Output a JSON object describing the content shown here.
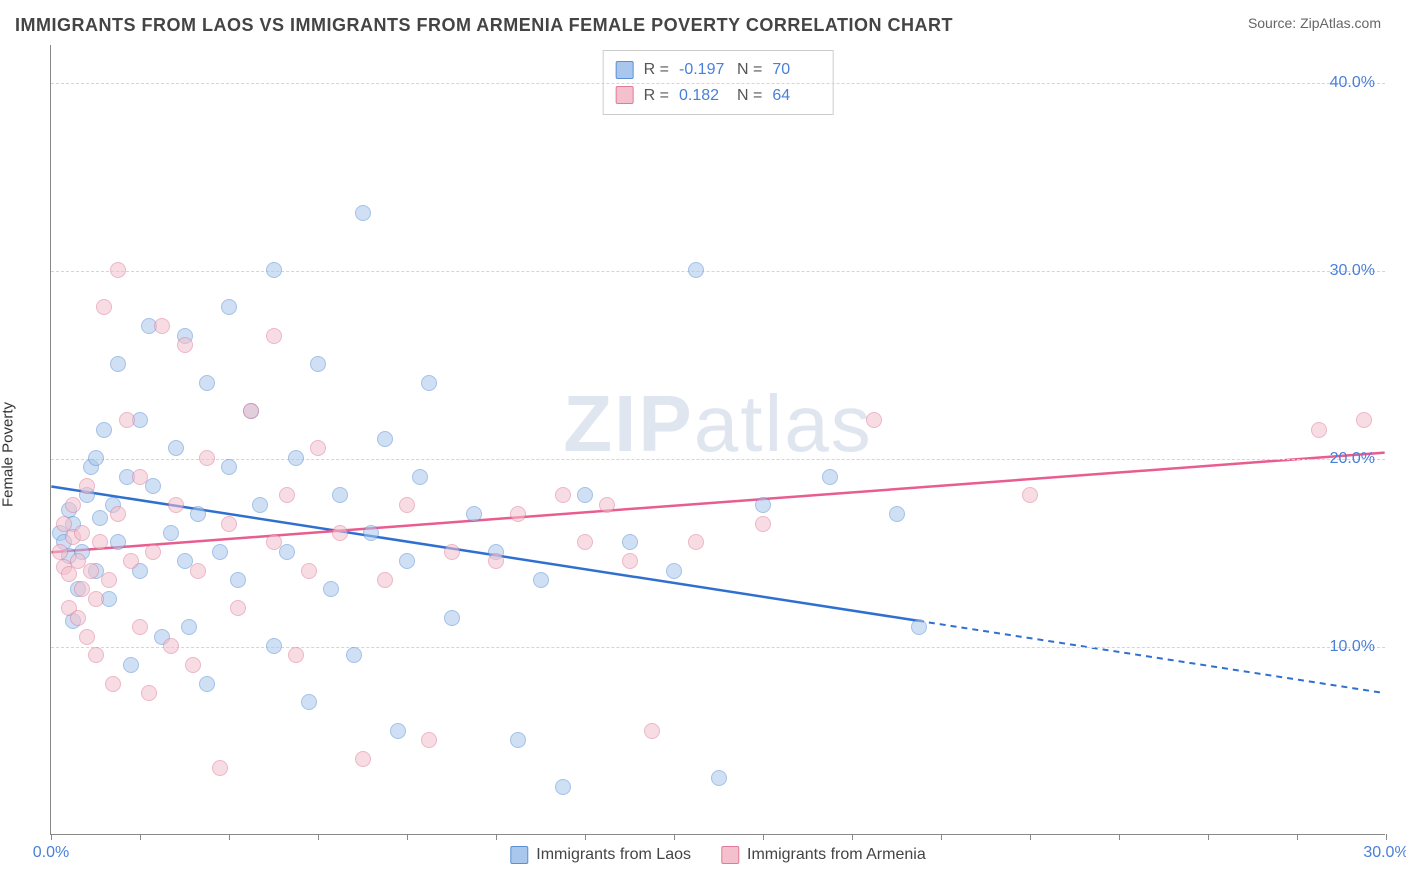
{
  "title": "IMMIGRANTS FROM LAOS VS IMMIGRANTS FROM ARMENIA FEMALE POVERTY CORRELATION CHART",
  "source_label": "Source: ",
  "source_value": "ZipAtlas.com",
  "ylabel": "Female Poverty",
  "watermark": {
    "part1": "ZIP",
    "part2": "atlas"
  },
  "chart": {
    "type": "scatter",
    "xlim": [
      0,
      30
    ],
    "ylim": [
      0,
      42
    ],
    "x_ticks": [
      0,
      2,
      4,
      6,
      8,
      10,
      12,
      14,
      16,
      18,
      20,
      22,
      24,
      26,
      28,
      30
    ],
    "x_tick_labels": {
      "0": "0.0%",
      "30": "30.0%"
    },
    "y_gridlines": [
      10,
      20,
      30,
      40
    ],
    "y_tick_labels": {
      "10": "10.0%",
      "20": "20.0%",
      "30": "30.0%",
      "40": "40.0%"
    },
    "background_color": "#ffffff",
    "grid_color": "#d5d5d5",
    "axis_color": "#888888",
    "tick_label_color": "#4a7fd8",
    "marker_radius": 8,
    "marker_opacity": 0.55,
    "marker_border_width": 1.5,
    "series": [
      {
        "name": "Immigrants from Laos",
        "color_fill": "#a9c7ed",
        "color_stroke": "#5b8fd6",
        "R": "-0.197",
        "N": "70",
        "trend": {
          "y_at_x0": 18.5,
          "y_at_x30": 7.5,
          "solid_until_x": 19.5,
          "color": "#2f6fd0",
          "width": 2.5
        },
        "points": [
          [
            0.2,
            16.0
          ],
          [
            0.3,
            15.5
          ],
          [
            0.4,
            14.8
          ],
          [
            0.4,
            17.2
          ],
          [
            0.5,
            16.5
          ],
          [
            0.5,
            11.3
          ],
          [
            0.6,
            13.0
          ],
          [
            0.7,
            15.0
          ],
          [
            0.8,
            18.0
          ],
          [
            0.9,
            19.5
          ],
          [
            1.0,
            14.0
          ],
          [
            1.0,
            20.0
          ],
          [
            1.1,
            16.8
          ],
          [
            1.2,
            21.5
          ],
          [
            1.3,
            12.5
          ],
          [
            1.4,
            17.5
          ],
          [
            1.5,
            25.0
          ],
          [
            1.5,
            15.5
          ],
          [
            1.7,
            19.0
          ],
          [
            1.8,
            9.0
          ],
          [
            2.0,
            22.0
          ],
          [
            2.0,
            14.0
          ],
          [
            2.2,
            27.0
          ],
          [
            2.3,
            18.5
          ],
          [
            2.5,
            10.5
          ],
          [
            2.7,
            16.0
          ],
          [
            2.8,
            20.5
          ],
          [
            3.0,
            26.5
          ],
          [
            3.0,
            14.5
          ],
          [
            3.1,
            11.0
          ],
          [
            3.3,
            17.0
          ],
          [
            3.5,
            24.0
          ],
          [
            3.5,
            8.0
          ],
          [
            3.8,
            15.0
          ],
          [
            4.0,
            19.5
          ],
          [
            4.0,
            28.0
          ],
          [
            4.2,
            13.5
          ],
          [
            4.5,
            22.5
          ],
          [
            4.7,
            17.5
          ],
          [
            5.0,
            10.0
          ],
          [
            5.0,
            30.0
          ],
          [
            5.3,
            15.0
          ],
          [
            5.5,
            20.0
          ],
          [
            5.8,
            7.0
          ],
          [
            6.0,
            25.0
          ],
          [
            6.3,
            13.0
          ],
          [
            6.5,
            18.0
          ],
          [
            6.8,
            9.5
          ],
          [
            7.0,
            33.0
          ],
          [
            7.2,
            16.0
          ],
          [
            7.5,
            21.0
          ],
          [
            7.8,
            5.5
          ],
          [
            8.0,
            14.5
          ],
          [
            8.3,
            19.0
          ],
          [
            8.5,
            24.0
          ],
          [
            9.0,
            11.5
          ],
          [
            9.5,
            17.0
          ],
          [
            10.0,
            15.0
          ],
          [
            10.5,
            5.0
          ],
          [
            11.0,
            13.5
          ],
          [
            11.5,
            2.5
          ],
          [
            12.0,
            18.0
          ],
          [
            13.0,
            15.5
          ],
          [
            14.0,
            14.0
          ],
          [
            14.5,
            30.0
          ],
          [
            15.0,
            3.0
          ],
          [
            16.0,
            17.5
          ],
          [
            17.5,
            19.0
          ],
          [
            19.0,
            17.0
          ],
          [
            19.5,
            11.0
          ]
        ]
      },
      {
        "name": "Immigrants from Armenia",
        "color_fill": "#f4c0cd",
        "color_stroke": "#e07b9a",
        "R": "0.182",
        "N": "64",
        "trend": {
          "y_at_x0": 15.0,
          "y_at_x30": 20.3,
          "solid_until_x": 30,
          "color": "#e85c8f",
          "width": 2.5
        },
        "points": [
          [
            0.2,
            15.0
          ],
          [
            0.3,
            14.2
          ],
          [
            0.3,
            16.5
          ],
          [
            0.4,
            13.8
          ],
          [
            0.4,
            12.0
          ],
          [
            0.5,
            15.8
          ],
          [
            0.5,
            17.5
          ],
          [
            0.6,
            11.5
          ],
          [
            0.6,
            14.5
          ],
          [
            0.7,
            13.0
          ],
          [
            0.7,
            16.0
          ],
          [
            0.8,
            10.5
          ],
          [
            0.8,
            18.5
          ],
          [
            0.9,
            14.0
          ],
          [
            1.0,
            12.5
          ],
          [
            1.0,
            9.5
          ],
          [
            1.1,
            15.5
          ],
          [
            1.2,
            28.0
          ],
          [
            1.3,
            13.5
          ],
          [
            1.4,
            8.0
          ],
          [
            1.5,
            17.0
          ],
          [
            1.5,
            30.0
          ],
          [
            1.7,
            22.0
          ],
          [
            1.8,
            14.5
          ],
          [
            2.0,
            11.0
          ],
          [
            2.0,
            19.0
          ],
          [
            2.2,
            7.5
          ],
          [
            2.3,
            15.0
          ],
          [
            2.5,
            27.0
          ],
          [
            2.7,
            10.0
          ],
          [
            2.8,
            17.5
          ],
          [
            3.0,
            26.0
          ],
          [
            3.2,
            9.0
          ],
          [
            3.3,
            14.0
          ],
          [
            3.5,
            20.0
          ],
          [
            3.8,
            3.5
          ],
          [
            4.0,
            16.5
          ],
          [
            4.2,
            12.0
          ],
          [
            4.5,
            22.5
          ],
          [
            5.0,
            15.5
          ],
          [
            5.0,
            26.5
          ],
          [
            5.3,
            18.0
          ],
          [
            5.5,
            9.5
          ],
          [
            5.8,
            14.0
          ],
          [
            6.0,
            20.5
          ],
          [
            6.5,
            16.0
          ],
          [
            7.0,
            4.0
          ],
          [
            7.5,
            13.5
          ],
          [
            8.0,
            17.5
          ],
          [
            8.5,
            5.0
          ],
          [
            9.0,
            15.0
          ],
          [
            10.0,
            14.5
          ],
          [
            10.5,
            17.0
          ],
          [
            11.5,
            18.0
          ],
          [
            12.0,
            15.5
          ],
          [
            12.5,
            17.5
          ],
          [
            13.0,
            14.5
          ],
          [
            13.5,
            5.5
          ],
          [
            14.5,
            15.5
          ],
          [
            16.0,
            16.5
          ],
          [
            18.5,
            22.0
          ],
          [
            22.0,
            18.0
          ],
          [
            28.5,
            21.5
          ],
          [
            29.5,
            22.0
          ]
        ]
      }
    ],
    "legend_labels": {
      "R": "R =",
      "N": "N ="
    }
  }
}
